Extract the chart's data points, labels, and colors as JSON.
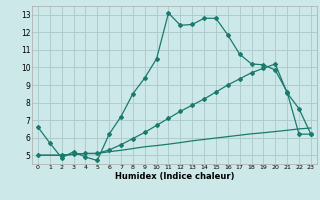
{
  "title": "",
  "xlabel": "Humidex (Indice chaleur)",
  "bg_color": "#cce8e8",
  "grid_color": "#b0cccc",
  "line_color": "#1a7a6e",
  "xlim": [
    -0.5,
    23.5
  ],
  "ylim": [
    4.5,
    13.5
  ],
  "xticks": [
    0,
    1,
    2,
    3,
    4,
    5,
    6,
    7,
    8,
    9,
    10,
    11,
    12,
    13,
    14,
    15,
    16,
    17,
    18,
    19,
    20,
    21,
    22,
    23
  ],
  "yticks": [
    5,
    6,
    7,
    8,
    9,
    10,
    11,
    12,
    13
  ],
  "series1_x": [
    0,
    1,
    2,
    3,
    4,
    5,
    6,
    7,
    8,
    9,
    10,
    11,
    12,
    13,
    14,
    15,
    16,
    17,
    18,
    19,
    20,
    21,
    22,
    23
  ],
  "series1_y": [
    6.6,
    5.7,
    4.85,
    5.2,
    4.9,
    4.7,
    6.2,
    7.2,
    8.5,
    9.4,
    10.5,
    13.1,
    12.4,
    12.45,
    12.8,
    12.8,
    11.85,
    10.75,
    10.2,
    10.15,
    9.85,
    8.6,
    6.2,
    6.2
  ],
  "series2_x": [
    0,
    2,
    3,
    4,
    5,
    6,
    7,
    8,
    9,
    10,
    11,
    12,
    13,
    14,
    15,
    16,
    17,
    18,
    19,
    20,
    21,
    22,
    23
  ],
  "series2_y": [
    5.0,
    5.0,
    5.05,
    5.1,
    5.1,
    5.2,
    5.28,
    5.38,
    5.48,
    5.55,
    5.63,
    5.72,
    5.82,
    5.9,
    5.98,
    6.06,
    6.14,
    6.22,
    6.28,
    6.35,
    6.42,
    6.5,
    6.55
  ],
  "series3_x": [
    0,
    2,
    3,
    4,
    5,
    6,
    7,
    8,
    9,
    10,
    11,
    12,
    13,
    14,
    15,
    16,
    17,
    18,
    19,
    20,
    21,
    22,
    23
  ],
  "series3_y": [
    5.0,
    5.0,
    5.05,
    5.1,
    5.1,
    5.3,
    5.6,
    5.95,
    6.3,
    6.7,
    7.1,
    7.5,
    7.85,
    8.2,
    8.6,
    9.0,
    9.35,
    9.7,
    9.95,
    10.2,
    8.55,
    7.65,
    6.2
  ]
}
